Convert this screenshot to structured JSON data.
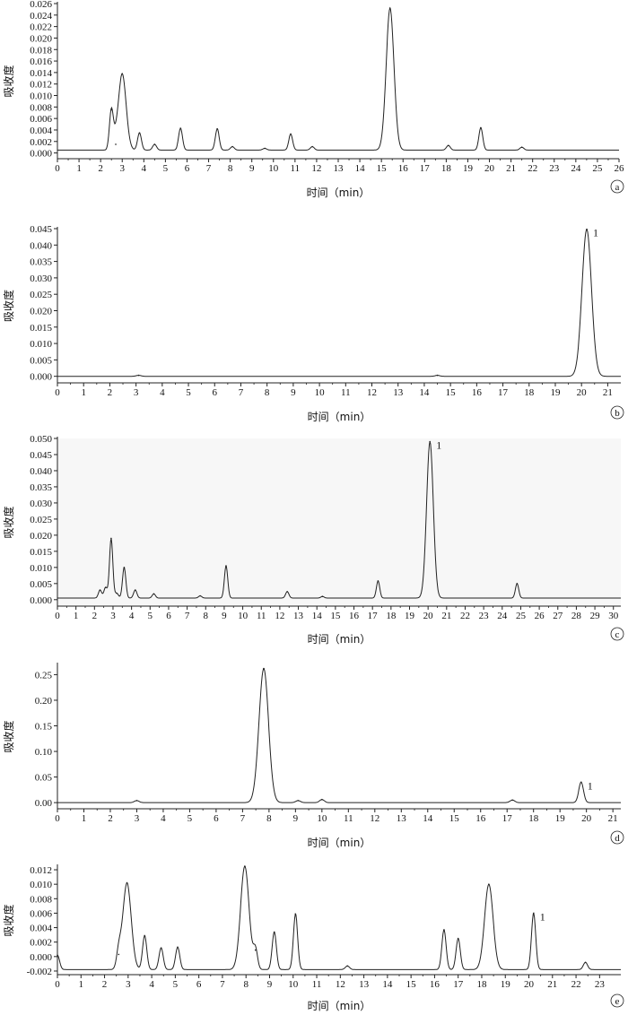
{
  "chart_data": [
    {
      "type": "line",
      "panel": "a",
      "xlabel": "时间（min）",
      "ylabel": "吸收度",
      "xlim": [
        0,
        26
      ],
      "ylim": [
        -0.001,
        0.026
      ],
      "xticks": [
        0,
        1,
        2,
        3,
        4,
        5,
        6,
        7,
        8,
        9,
        10,
        11,
        12,
        13,
        14,
        15,
        16,
        17,
        18,
        19,
        20,
        21,
        22,
        23,
        24,
        25,
        26
      ],
      "yticks": [
        0.0,
        0.002,
        0.004,
        0.006,
        0.008,
        0.01,
        0.012,
        0.014,
        0.016,
        0.018,
        0.02,
        0.022,
        0.024,
        0.026
      ],
      "ytick_labels": [
        "0.000",
        "0.002",
        "0.004",
        "0.006",
        "0.008",
        "0.010",
        "0.012",
        "0.014",
        "0.016",
        "0.018",
        "0.020",
        "0.022",
        "0.024",
        "0.026"
      ],
      "baseline": 0.0005,
      "peaks": [
        {
          "x": 2.5,
          "y": 0.0075
        },
        {
          "x": 2.7,
          "y": 0.0015
        },
        {
          "x": 3.0,
          "y": 0.0138
        },
        {
          "x": 3.8,
          "y": 0.0035
        },
        {
          "x": 4.5,
          "y": 0.0015
        },
        {
          "x": 5.7,
          "y": 0.0043
        },
        {
          "x": 7.4,
          "y": 0.0042
        },
        {
          "x": 8.1,
          "y": 0.0011
        },
        {
          "x": 9.6,
          "y": 0.0008
        },
        {
          "x": 10.8,
          "y": 0.0033
        },
        {
          "x": 11.8,
          "y": 0.0011
        },
        {
          "x": 15.4,
          "y": 0.0252
        },
        {
          "x": 18.1,
          "y": 0.0013
        },
        {
          "x": 19.6,
          "y": 0.0044
        },
        {
          "x": 21.5,
          "y": 0.001
        }
      ],
      "peak_labels": []
    },
    {
      "type": "line",
      "panel": "b",
      "xlabel": "时间（min）",
      "ylabel": "吸收度",
      "xlim": [
        0,
        21.5
      ],
      "ylim": [
        -0.002,
        0.045
      ],
      "xticks": [
        0,
        1,
        2,
        3,
        4,
        5,
        6,
        7,
        8,
        9,
        10,
        11,
        12,
        13,
        14,
        15,
        16,
        17,
        18,
        19,
        20,
        21
      ],
      "yticks": [
        0.0,
        0.005,
        0.01,
        0.015,
        0.02,
        0.025,
        0.03,
        0.035,
        0.04,
        0.045
      ],
      "ytick_labels": [
        "0.000",
        "0.005",
        "0.010",
        "0.015",
        "0.020",
        "0.025",
        "0.030",
        "0.035",
        "0.040",
        "0.045"
      ],
      "baseline": 0.0,
      "peaks": [
        {
          "x": 3.1,
          "y": 0.0003
        },
        {
          "x": 14.5,
          "y": 0.0003
        },
        {
          "x": 20.2,
          "y": 0.0448
        }
      ],
      "peak_labels": [
        {
          "x": 20.2,
          "y": 0.0448,
          "text": "1"
        }
      ]
    },
    {
      "type": "line",
      "panel": "c",
      "xlabel": "时间（min）",
      "ylabel": "吸收度",
      "xlim": [
        0,
        30.4
      ],
      "ylim": [
        -0.002,
        0.05
      ],
      "xticks": [
        0,
        1,
        2,
        3,
        4,
        5,
        6,
        7,
        8,
        9,
        10,
        11,
        12,
        13,
        14,
        15,
        16,
        17,
        18,
        19,
        20,
        21,
        22,
        23,
        24,
        25,
        26,
        27,
        28,
        29,
        30
      ],
      "yticks": [
        0.0,
        0.005,
        0.01,
        0.015,
        0.02,
        0.025,
        0.03,
        0.035,
        0.04,
        0.045,
        0.05
      ],
      "ytick_labels": [
        "0.000",
        "0.005",
        "0.010",
        "0.015",
        "0.020",
        "0.025",
        "0.030",
        "0.035",
        "0.040",
        "0.045",
        "0.050"
      ],
      "baseline": 0.0005,
      "peaks": [
        {
          "x": 2.3,
          "y": 0.003
        },
        {
          "x": 2.6,
          "y": 0.0038
        },
        {
          "x": 2.9,
          "y": 0.019
        },
        {
          "x": 3.2,
          "y": 0.002
        },
        {
          "x": 3.6,
          "y": 0.01
        },
        {
          "x": 4.2,
          "y": 0.003
        },
        {
          "x": 5.2,
          "y": 0.0018
        },
        {
          "x": 7.7,
          "y": 0.0012
        },
        {
          "x": 9.1,
          "y": 0.0105
        },
        {
          "x": 12.4,
          "y": 0.0025
        },
        {
          "x": 14.3,
          "y": 0.001
        },
        {
          "x": 17.3,
          "y": 0.0058
        },
        {
          "x": 20.1,
          "y": 0.049
        },
        {
          "x": 24.8,
          "y": 0.005
        }
      ],
      "peak_labels": [
        {
          "x": 20.1,
          "y": 0.049,
          "text": "1"
        }
      ]
    },
    {
      "type": "line",
      "panel": "d",
      "xlabel": "时间（min）",
      "ylabel": "吸收度",
      "xlim": [
        0,
        21.3
      ],
      "ylim": [
        -0.012,
        0.27
      ],
      "xticks": [
        0,
        1,
        2,
        3,
        4,
        5,
        6,
        7,
        8,
        9,
        10,
        11,
        12,
        13,
        14,
        15,
        16,
        17,
        18,
        19,
        20,
        21
      ],
      "yticks": [
        0.0,
        0.05,
        0.1,
        0.15,
        0.2,
        0.25
      ],
      "ytick_labels": [
        "0.00",
        "0.05",
        "0.10",
        "0.15",
        "0.20",
        "0.25"
      ],
      "baseline": 0.0,
      "peaks": [
        {
          "x": 3.0,
          "y": 0.004
        },
        {
          "x": 7.8,
          "y": 0.262
        },
        {
          "x": 9.1,
          "y": 0.004
        },
        {
          "x": 10.0,
          "y": 0.006
        },
        {
          "x": 17.2,
          "y": 0.005
        },
        {
          "x": 19.8,
          "y": 0.04
        }
      ],
      "peak_labels": [
        {
          "x": 19.8,
          "y": 0.04,
          "text": "1"
        }
      ]
    },
    {
      "type": "line",
      "panel": "e",
      "xlabel": "时间（min）",
      "ylabel": "吸收度",
      "xlim": [
        0,
        23.9
      ],
      "ylim": [
        -0.0025,
        0.0125
      ],
      "xticks": [
        0,
        1,
        2,
        3,
        4,
        5,
        6,
        7,
        8,
        9,
        10,
        11,
        12,
        13,
        14,
        15,
        16,
        17,
        18,
        19,
        20,
        21,
        22,
        23
      ],
      "yticks": [
        -0.002,
        0.0,
        0.002,
        0.004,
        0.006,
        0.008,
        0.01,
        0.012
      ],
      "ytick_labels": [
        "-0.002",
        "0.000",
        "0.002",
        "0.004",
        "0.006",
        "0.008",
        "0.010",
        "0.012"
      ],
      "baseline": -0.0018,
      "peaks": [
        {
          "x": 0.0,
          "y": 0.0002
        },
        {
          "x": 2.6,
          "y": 0.0003
        },
        {
          "x": 2.95,
          "y": 0.0102
        },
        {
          "x": 3.7,
          "y": 0.0029
        },
        {
          "x": 4.4,
          "y": 0.0012
        },
        {
          "x": 5.1,
          "y": 0.0013
        },
        {
          "x": 7.95,
          "y": 0.0125
        },
        {
          "x": 8.4,
          "y": 0.0009
        },
        {
          "x": 9.2,
          "y": 0.0034
        },
        {
          "x": 10.1,
          "y": 0.0059
        },
        {
          "x": 12.3,
          "y": -0.0013
        },
        {
          "x": 16.4,
          "y": 0.0037
        },
        {
          "x": 17.0,
          "y": 0.0025
        },
        {
          "x": 18.3,
          "y": 0.01
        },
        {
          "x": 20.2,
          "y": 0.006
        },
        {
          "x": 22.4,
          "y": -0.0008
        }
      ],
      "peak_labels": [
        {
          "x": 20.2,
          "y": 0.006,
          "text": "1"
        }
      ]
    }
  ]
}
